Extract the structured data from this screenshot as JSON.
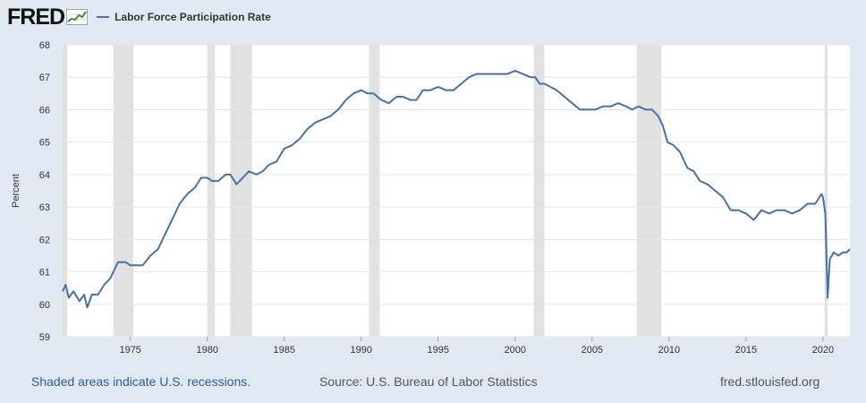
{
  "header": {
    "logo_text": "FRED",
    "series_label": "Labor Force Participation Rate"
  },
  "footer": {
    "recession_note": "Shaded areas indicate U.S. recessions.",
    "source": "Source: U.S. Bureau of Labor Statistics",
    "site": "fred.stlouisfed.org"
  },
  "colors": {
    "line": "#4572a7",
    "recession": "#e1e1e1",
    "grid": "#e6e6e6",
    "background": "#e1e9f0",
    "logo_green": "#3d8f3d"
  },
  "chart_data": {
    "type": "line",
    "title": "",
    "xlabel": "",
    "ylabel": "Percent",
    "xlim": [
      1970.6,
      2021.75
    ],
    "ylim": [
      59,
      68
    ],
    "x_ticks": [
      1975,
      1980,
      1985,
      1990,
      1995,
      2000,
      2005,
      2010,
      2015,
      2020
    ],
    "y_ticks": [
      59,
      60,
      61,
      62,
      63,
      64,
      65,
      66,
      67,
      68
    ],
    "grid": "horizontal",
    "legend": "top-left",
    "recessions": [
      [
        1970.0,
        1970.9
      ],
      [
        1973.9,
        1975.2
      ],
      [
        1980.0,
        1980.5
      ],
      [
        1981.5,
        1982.9
      ],
      [
        1990.5,
        1991.2
      ],
      [
        2001.2,
        2001.9
      ],
      [
        2007.9,
        2009.5
      ],
      [
        2020.1,
        2020.3
      ]
    ],
    "series": [
      {
        "name": "Labor Force Participation Rate",
        "points": [
          [
            1970.6,
            60.4
          ],
          [
            1970.8,
            60.6
          ],
          [
            1971.0,
            60.2
          ],
          [
            1971.3,
            60.4
          ],
          [
            1971.7,
            60.1
          ],
          [
            1972.0,
            60.3
          ],
          [
            1972.2,
            59.9
          ],
          [
            1972.5,
            60.3
          ],
          [
            1972.9,
            60.3
          ],
          [
            1973.3,
            60.6
          ],
          [
            1973.7,
            60.8
          ],
          [
            1973.9,
            61.0
          ],
          [
            1974.2,
            61.3
          ],
          [
            1974.7,
            61.3
          ],
          [
            1975.0,
            61.2
          ],
          [
            1975.4,
            61.2
          ],
          [
            1975.8,
            61.2
          ],
          [
            1976.3,
            61.5
          ],
          [
            1976.8,
            61.7
          ],
          [
            1977.2,
            62.1
          ],
          [
            1977.7,
            62.6
          ],
          [
            1978.2,
            63.1
          ],
          [
            1978.7,
            63.4
          ],
          [
            1979.2,
            63.6
          ],
          [
            1979.6,
            63.9
          ],
          [
            1980.0,
            63.9
          ],
          [
            1980.3,
            63.8
          ],
          [
            1980.7,
            63.8
          ],
          [
            1981.2,
            64.0
          ],
          [
            1981.5,
            64.0
          ],
          [
            1981.9,
            63.7
          ],
          [
            1982.3,
            63.9
          ],
          [
            1982.7,
            64.1
          ],
          [
            1983.2,
            64.0
          ],
          [
            1983.6,
            64.1
          ],
          [
            1984.0,
            64.3
          ],
          [
            1984.5,
            64.4
          ],
          [
            1985.0,
            64.8
          ],
          [
            1985.5,
            64.9
          ],
          [
            1986.0,
            65.1
          ],
          [
            1986.5,
            65.4
          ],
          [
            1987.0,
            65.6
          ],
          [
            1987.5,
            65.7
          ],
          [
            1988.0,
            65.8
          ],
          [
            1988.5,
            66.0
          ],
          [
            1989.0,
            66.3
          ],
          [
            1989.5,
            66.5
          ],
          [
            1990.0,
            66.6
          ],
          [
            1990.4,
            66.5
          ],
          [
            1990.8,
            66.5
          ],
          [
            1991.3,
            66.3
          ],
          [
            1991.8,
            66.2
          ],
          [
            1992.3,
            66.4
          ],
          [
            1992.7,
            66.4
          ],
          [
            1993.2,
            66.3
          ],
          [
            1993.6,
            66.3
          ],
          [
            1994.0,
            66.6
          ],
          [
            1994.5,
            66.6
          ],
          [
            1995.0,
            66.7
          ],
          [
            1995.5,
            66.6
          ],
          [
            1996.0,
            66.6
          ],
          [
            1996.5,
            66.8
          ],
          [
            1997.0,
            67.0
          ],
          [
            1997.5,
            67.1
          ],
          [
            1998.0,
            67.1
          ],
          [
            1998.5,
            67.1
          ],
          [
            1999.0,
            67.1
          ],
          [
            1999.5,
            67.1
          ],
          [
            2000.0,
            67.2
          ],
          [
            2000.5,
            67.1
          ],
          [
            2001.0,
            67.0
          ],
          [
            2001.3,
            67.0
          ],
          [
            2001.6,
            66.8
          ],
          [
            2001.9,
            66.8
          ],
          [
            2002.3,
            66.7
          ],
          [
            2002.7,
            66.6
          ],
          [
            2003.2,
            66.4
          ],
          [
            2003.7,
            66.2
          ],
          [
            2004.2,
            66.0
          ],
          [
            2004.7,
            66.0
          ],
          [
            2005.2,
            66.0
          ],
          [
            2005.7,
            66.1
          ],
          [
            2006.2,
            66.1
          ],
          [
            2006.7,
            66.2
          ],
          [
            2007.2,
            66.1
          ],
          [
            2007.6,
            66.0
          ],
          [
            2008.0,
            66.1
          ],
          [
            2008.5,
            66.0
          ],
          [
            2008.9,
            66.0
          ],
          [
            2009.3,
            65.8
          ],
          [
            2009.6,
            65.5
          ],
          [
            2009.9,
            65.0
          ],
          [
            2010.3,
            64.9
          ],
          [
            2010.7,
            64.7
          ],
          [
            2011.2,
            64.2
          ],
          [
            2011.6,
            64.1
          ],
          [
            2012.0,
            63.8
          ],
          [
            2012.5,
            63.7
          ],
          [
            2013.0,
            63.5
          ],
          [
            2013.5,
            63.3
          ],
          [
            2014.0,
            62.9
          ],
          [
            2014.5,
            62.9
          ],
          [
            2015.0,
            62.8
          ],
          [
            2015.5,
            62.6
          ],
          [
            2016.0,
            62.9
          ],
          [
            2016.5,
            62.8
          ],
          [
            2017.0,
            62.9
          ],
          [
            2017.5,
            62.9
          ],
          [
            2018.0,
            62.8
          ],
          [
            2018.5,
            62.9
          ],
          [
            2019.0,
            63.1
          ],
          [
            2019.5,
            63.1
          ],
          [
            2019.9,
            63.4
          ],
          [
            2020.0,
            63.3
          ],
          [
            2020.15,
            62.8
          ],
          [
            2020.3,
            60.2
          ],
          [
            2020.45,
            61.4
          ],
          [
            2020.7,
            61.6
          ],
          [
            2021.0,
            61.5
          ],
          [
            2021.3,
            61.6
          ],
          [
            2021.55,
            61.6
          ],
          [
            2021.75,
            61.7
          ]
        ]
      }
    ]
  }
}
